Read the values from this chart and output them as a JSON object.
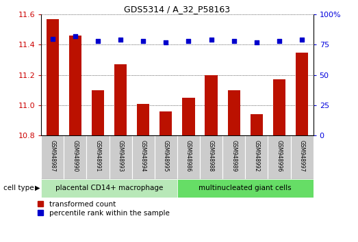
{
  "title": "GDS5314 / A_32_P58163",
  "samples": [
    "GSM948987",
    "GSM948990",
    "GSM948991",
    "GSM948993",
    "GSM948994",
    "GSM948995",
    "GSM948986",
    "GSM948988",
    "GSM948989",
    "GSM948992",
    "GSM948996",
    "GSM948997"
  ],
  "transformed_count": [
    11.57,
    11.46,
    11.1,
    11.27,
    11.01,
    10.96,
    11.05,
    11.2,
    11.1,
    10.94,
    11.17,
    11.35
  ],
  "percentile_rank": [
    80,
    82,
    78,
    79,
    78,
    77,
    78,
    79,
    78,
    77,
    78,
    79
  ],
  "group1_count": 6,
  "group2_count": 6,
  "group1_label": "placental CD14+ macrophage",
  "group2_label": "multinucleated giant cells",
  "group1_color": "#b8e8b8",
  "group2_color": "#66dd66",
  "bar_color": "#bb1100",
  "dot_color": "#0000cc",
  "ylim_left": [
    10.8,
    11.6
  ],
  "ylim_right": [
    0,
    100
  ],
  "yticks_left": [
    10.8,
    11.0,
    11.2,
    11.4,
    11.6
  ],
  "yticks_right": [
    0,
    25,
    50,
    75,
    100
  ],
  "legend_red_label": "transformed count",
  "legend_blue_label": "percentile rank within the sample",
  "cell_type_label": "cell type",
  "bar_width": 0.55,
  "tick_label_color_left": "#cc0000",
  "tick_label_color_right": "#0000dd",
  "gray_color": "#cccccc"
}
